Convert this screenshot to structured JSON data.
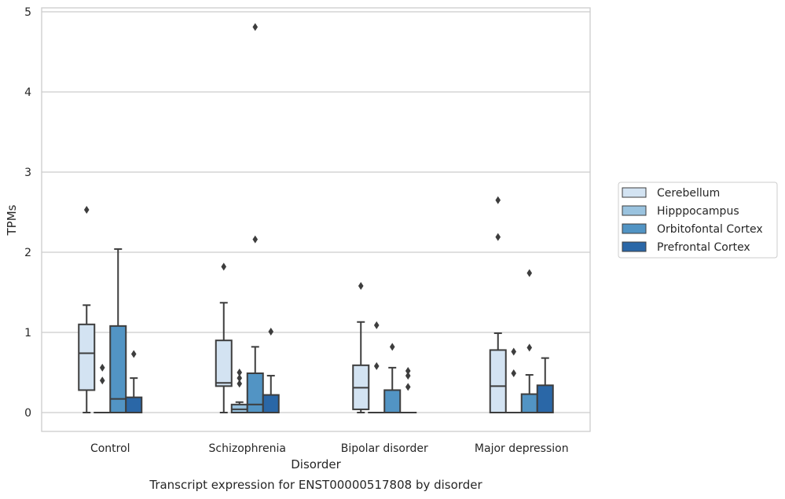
{
  "chart_data": {
    "type": "box",
    "title": "Transcript expression for ENST00000517808 by disorder",
    "xlabel": "Disorder",
    "ylabel": "TPMs",
    "ylim": [
      -0.23,
      5.07
    ],
    "yticks": [
      0,
      1,
      2,
      3,
      4,
      5
    ],
    "grid": "horizontal",
    "legend_position": "right",
    "categories": [
      "Control",
      "Schizophrenia",
      "Bipolar disorder",
      "Major depression"
    ],
    "series": [
      {
        "name": "Cerebellum",
        "color": "#d3e3f2",
        "boxes": [
          {
            "whislo": 0,
            "q1": 0.28,
            "med": 0.74,
            "q3": 1.1,
            "whishi": 1.34,
            "fliers": [
              2.53
            ]
          },
          {
            "whislo": 0,
            "q1": 0.33,
            "med": 0.37,
            "q3": 0.9,
            "whishi": 1.37,
            "fliers": [
              1.82
            ]
          },
          {
            "whislo": 0,
            "q1": 0.04,
            "med": 0.31,
            "q3": 0.59,
            "whishi": 1.13,
            "fliers": [
              1.58
            ]
          },
          {
            "whislo": 0,
            "q1": 0,
            "med": 0.33,
            "q3": 0.78,
            "whishi": 0.99,
            "fliers": [
              2.19,
              2.65
            ]
          }
        ]
      },
      {
        "name": "Hipppocampus",
        "color": "#9ac3df",
        "boxes": [
          {
            "whislo": 0,
            "q1": 0,
            "med": 0,
            "q3": 0,
            "whishi": 0,
            "fliers": [
              0.4,
              0.56
            ]
          },
          {
            "whislo": 0,
            "q1": 0,
            "med": 0.04,
            "q3": 0.1,
            "whishi": 0.13,
            "fliers": [
              0.36,
              0.43,
              0.5
            ]
          },
          {
            "whislo": 0,
            "q1": 0,
            "med": 0,
            "q3": 0,
            "whishi": 0,
            "fliers": [
              0.58,
              1.09
            ]
          },
          {
            "whislo": 0,
            "q1": 0,
            "med": 0,
            "q3": 0,
            "whishi": 0,
            "fliers": [
              0.49,
              0.76
            ]
          }
        ]
      },
      {
        "name": "Orbitofontal Cortex",
        "color": "#5294c4",
        "boxes": [
          {
            "whislo": 0,
            "q1": 0,
            "med": 0.17,
            "q3": 1.08,
            "whishi": 2.04,
            "fliers": []
          },
          {
            "whislo": 0,
            "q1": 0,
            "med": 0.1,
            "q3": 0.49,
            "whishi": 0.82,
            "fliers": [
              2.16,
              4.81
            ]
          },
          {
            "whislo": 0,
            "q1": 0,
            "med": 0,
            "q3": 0.28,
            "whishi": 0.56,
            "fliers": [
              0.82
            ]
          },
          {
            "whislo": 0,
            "q1": 0,
            "med": 0,
            "q3": 0.23,
            "whishi": 0.47,
            "fliers": [
              0.81,
              1.74
            ]
          }
        ]
      },
      {
        "name": "Prefrontal Cortex",
        "color": "#2a67a7",
        "boxes": [
          {
            "whislo": 0,
            "q1": 0,
            "med": 0,
            "q3": 0.19,
            "whishi": 0.43,
            "fliers": [
              0.73
            ]
          },
          {
            "whislo": 0,
            "q1": 0,
            "med": 0,
            "q3": 0.22,
            "whishi": 0.46,
            "fliers": [
              1.01
            ]
          },
          {
            "whislo": 0,
            "q1": 0,
            "med": 0,
            "q3": 0,
            "whishi": 0,
            "fliers": [
              0.32,
              0.46,
              0.52
            ]
          },
          {
            "whislo": 0,
            "q1": 0,
            "med": 0,
            "q3": 0.34,
            "whishi": 0.68,
            "fliers": []
          }
        ]
      }
    ]
  }
}
